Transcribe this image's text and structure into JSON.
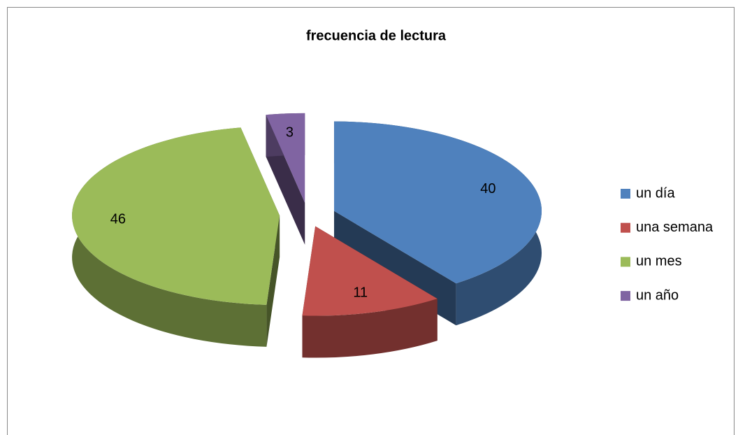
{
  "chart_data": {
    "type": "pie",
    "title": "frecuencia de lectura",
    "categories": [
      "un día",
      "una semana",
      "un mes",
      "un año"
    ],
    "values": [
      40,
      11,
      46,
      3
    ],
    "colors": [
      "#4f81bd",
      "#c0504d",
      "#9bbb59",
      "#8064a2"
    ],
    "legend": "right",
    "exploded": true,
    "three_d": true
  }
}
